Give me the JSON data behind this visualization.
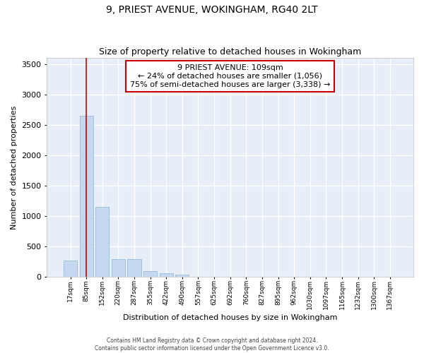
{
  "title1": "9, PRIEST AVENUE, WOKINGHAM, RG40 2LT",
  "title2": "Size of property relative to detached houses in Wokingham",
  "xlabel": "Distribution of detached houses by size in Wokingham",
  "ylabel": "Number of detached properties",
  "bar_color": "#c5d8f0",
  "bar_edge_color": "#8ab4d8",
  "background_color": "#e8eef8",
  "grid_color": "#ffffff",
  "annotation_text": "9 PRIEST AVENUE: 109sqm\n← 24% of detached houses are smaller (1,056)\n75% of semi-detached houses are larger (3,338) →",
  "annotation_box_color": "#ffffff",
  "annotation_box_edge_color": "#cc0000",
  "vline_color": "#cc0000",
  "vline_x": 1,
  "categories": [
    "17sqm",
    "85sqm",
    "152sqm",
    "220sqm",
    "287sqm",
    "355sqm",
    "422sqm",
    "490sqm",
    "557sqm",
    "625sqm",
    "692sqm",
    "760sqm",
    "827sqm",
    "895sqm",
    "962sqm",
    "1030sqm",
    "1097sqm",
    "1165sqm",
    "1232sqm",
    "1300sqm",
    "1367sqm"
  ],
  "values": [
    270,
    2650,
    1150,
    285,
    285,
    90,
    55,
    35,
    0,
    0,
    0,
    0,
    0,
    0,
    0,
    0,
    0,
    0,
    0,
    0,
    0
  ],
  "ylim": [
    0,
    3600
  ],
  "yticks": [
    0,
    500,
    1000,
    1500,
    2000,
    2500,
    3000,
    3500
  ],
  "footnote1": "Contains HM Land Registry data © Crown copyright and database right 2024.",
  "footnote2": "Contains public sector information licensed under the Open Government Licence v3.0."
}
